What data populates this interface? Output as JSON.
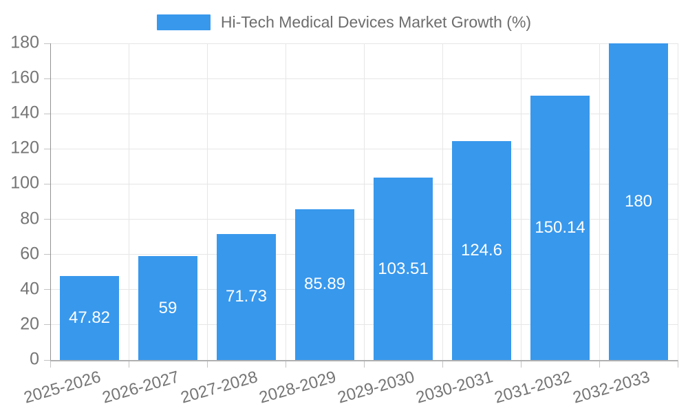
{
  "legend": {
    "label": "Hi-Tech Medical Devices Market Growth (%)"
  },
  "chart_data": {
    "type": "bar",
    "title": "Hi-Tech Medical Devices Market Growth (%)",
    "categories": [
      "2025-2026",
      "2026-2027",
      "2027-2028",
      "2028-2029",
      "2029-2030",
      "2030-2031",
      "2031-2032",
      "2032-2033"
    ],
    "values": [
      47.82,
      59,
      71.73,
      85.89,
      103.51,
      124.6,
      150.14,
      180
    ],
    "value_labels": [
      "47.82",
      "59",
      "71.73",
      "85.89",
      "103.51",
      "124.6",
      "150.14",
      "180"
    ],
    "xlabel": "",
    "ylabel": "",
    "ylim": [
      0,
      180
    ],
    "ytick_interval": 20,
    "yticks": [
      "0",
      "20",
      "40",
      "60",
      "80",
      "100",
      "120",
      "140",
      "160",
      "180"
    ],
    "grid": true,
    "legend_position": "top",
    "value_label_position": "center-inside"
  },
  "colors": {
    "bar": "#3898ec",
    "grid": "#e6e6e6",
    "y_axis_line": "#919191",
    "x_axis_line": "#b0b0b0",
    "tick": "#c2c2c2",
    "tick_text": "#757575",
    "legend_text": "#6d6d6d",
    "value_text": "#ffffff",
    "background": "#ffffff"
  }
}
